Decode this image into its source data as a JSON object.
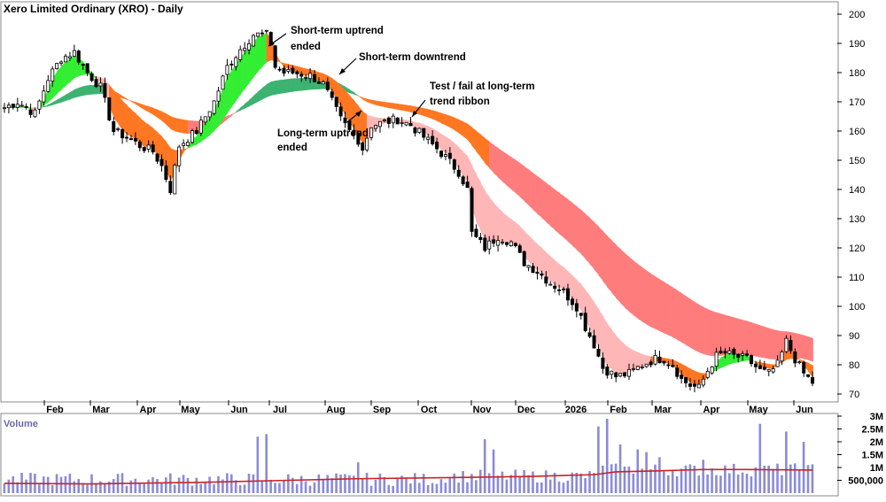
{
  "chart_data": [
    {
      "type": "candlestick",
      "title": "Xero Limited Ordinary (XRO) - Daily",
      "ylim": [
        65,
        205
      ],
      "y_ticks": [
        70,
        80,
        90,
        100,
        110,
        120,
        130,
        140,
        150,
        160,
        170,
        180,
        190,
        200
      ],
      "x_ticks": [
        "Feb",
        "Mar",
        "Apr",
        "May",
        "Jun",
        "Jul",
        "Aug",
        "Sep",
        "Oct",
        "Nov",
        "Dec",
        "2026",
        "Feb",
        "Mar",
        "Apr",
        "May",
        "Jun"
      ],
      "annotations": [
        {
          "lines": [
            "Short-term uptrend",
            "ended"
          ]
        },
        {
          "lines": [
            "Short-term downtrend"
          ]
        },
        {
          "lines": [
            "Test / fail at long-term",
            "trend ribbon"
          ]
        },
        {
          "lines": [
            "Long-term uptrend",
            "ended"
          ]
        }
      ],
      "price_path": [
        [
          0,
          168
        ],
        [
          3,
          170
        ],
        [
          7,
          166
        ],
        [
          10,
          178
        ],
        [
          13,
          185
        ],
        [
          16,
          187
        ],
        [
          19,
          180
        ],
        [
          22,
          175
        ],
        [
          25,
          160
        ],
        [
          28,
          158
        ],
        [
          31,
          155
        ],
        [
          34,
          153
        ],
        [
          36,
          148
        ],
        [
          38,
          140
        ],
        [
          40,
          155
        ],
        [
          44,
          160
        ],
        [
          48,
          170
        ],
        [
          51,
          182
        ],
        [
          54,
          188
        ],
        [
          57,
          193
        ],
        [
          60,
          193
        ],
        [
          61,
          190
        ],
        [
          62,
          182
        ],
        [
          64,
          180
        ],
        [
          66,
          180
        ],
        [
          70,
          179
        ],
        [
          73,
          176
        ],
        [
          75,
          170
        ],
        [
          77,
          164
        ],
        [
          79,
          160
        ],
        [
          81,
          157
        ],
        [
          82,
          154
        ],
        [
          84,
          162
        ],
        [
          87,
          163
        ],
        [
          90,
          164
        ],
        [
          93,
          162
        ],
        [
          96,
          158
        ],
        [
          99,
          154
        ],
        [
          101,
          151
        ],
        [
          104,
          146
        ],
        [
          106,
          140
        ],
        [
          107,
          125
        ],
        [
          110,
          120
        ],
        [
          113,
          124
        ],
        [
          116,
          122
        ],
        [
          119,
          115
        ],
        [
          122,
          112
        ],
        [
          125,
          108
        ],
        [
          128,
          105
        ],
        [
          131,
          100
        ],
        [
          133,
          93
        ],
        [
          135,
          87
        ],
        [
          137,
          79
        ],
        [
          140,
          76
        ],
        [
          143,
          77
        ],
        [
          146,
          80
        ],
        [
          149,
          82
        ],
        [
          151,
          82
        ],
        [
          153,
          80
        ],
        [
          155,
          75
        ],
        [
          157,
          73
        ],
        [
          159,
          72
        ],
        [
          161,
          78
        ],
        [
          163,
          83
        ],
        [
          165,
          84
        ],
        [
          167,
          83
        ],
        [
          170,
          82
        ],
        [
          173,
          78
        ],
        [
          175,
          77
        ],
        [
          177,
          80
        ],
        [
          179,
          88
        ],
        [
          181,
          82
        ],
        [
          183,
          77
        ],
        [
          185,
          74
        ]
      ]
    },
    {
      "type": "bar",
      "title": "Volume",
      "ylim": [
        0,
        3000000
      ],
      "y_ticks": [
        "500,000",
        "1M",
        "1.5M",
        "2M",
        "2.5M",
        "3M"
      ],
      "y_tick_values": [
        500000,
        1000000,
        1500000,
        2000000,
        2500000,
        3000000
      ],
      "spikes": [
        [
          58,
          2200000
        ],
        [
          60,
          2300000
        ],
        [
          81,
          1200000
        ],
        [
          110,
          2100000
        ],
        [
          112,
          1700000
        ],
        [
          136,
          2600000
        ],
        [
          138,
          2900000
        ],
        [
          141,
          1900000
        ],
        [
          145,
          1700000
        ],
        [
          147,
          1600000
        ],
        [
          150,
          1400000
        ],
        [
          160,
          1300000
        ],
        [
          173,
          2700000
        ],
        [
          179,
          2400000
        ],
        [
          183,
          2000000
        ]
      ],
      "moving_average": [
        [
          0,
          380000
        ],
        [
          20,
          360000
        ],
        [
          45,
          420000
        ],
        [
          65,
          500000
        ],
        [
          80,
          560000
        ],
        [
          100,
          600000
        ],
        [
          120,
          650000
        ],
        [
          135,
          720000
        ],
        [
          140,
          830000
        ],
        [
          150,
          870000
        ],
        [
          160,
          920000
        ],
        [
          170,
          920000
        ],
        [
          185,
          900000
        ]
      ]
    }
  ]
}
